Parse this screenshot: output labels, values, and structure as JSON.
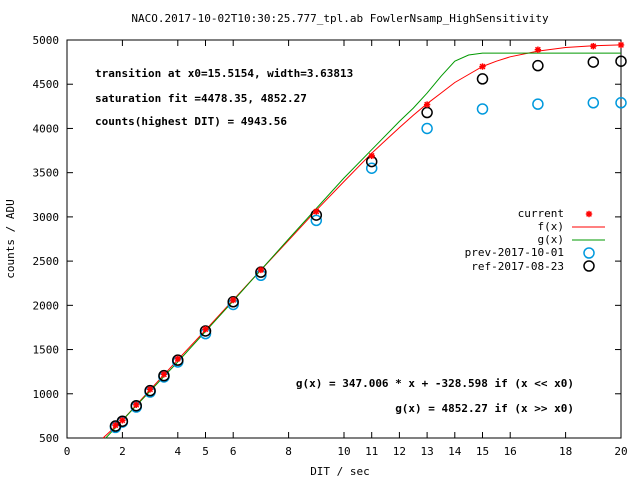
{
  "chart_data": {
    "type": "scatter",
    "title": "NACO.2017-10-02T10:30:25.777_tpl.ab FowlerNsamp_HighSensitivity",
    "xlabel": "DIT / sec",
    "ylabel": "counts / ADU",
    "xlim": [
      0,
      20
    ],
    "ylim": [
      500,
      5000
    ],
    "xticks": [
      0,
      2,
      4,
      6,
      8,
      10,
      12,
      14,
      16,
      18,
      20
    ],
    "xticks_extra": [
      5,
      11,
      13,
      15
    ],
    "yticks": [
      500,
      1000,
      1500,
      2000,
      2500,
      3000,
      3500,
      4000,
      4500,
      5000
    ],
    "grid": false,
    "legend_position": "right",
    "annotations": [
      "transition at x0=15.5154, width=3.63813",
      "saturation fit =4478.35, 4852.27",
      "counts(highest DIT) = 4943.56",
      "g(x) = 347.006 * x + -328.598 if (x << x0)",
      "g(x) = 4852.27 if (x >> x0)"
    ],
    "colors": {
      "current": "#ff0000",
      "f": "#ff0000",
      "g": "#009900",
      "prev": "#0099dd",
      "ref": "#000000"
    },
    "series": [
      {
        "name": "current",
        "marker": "star",
        "x": [
          1.75,
          2,
          2.5,
          3,
          3.5,
          4,
          5,
          6,
          7,
          9,
          11,
          13,
          15,
          17,
          19,
          20
        ],
        "y": [
          645,
          700,
          875,
          1050,
          1220,
          1395,
          1730,
          2060,
          2400,
          3060,
          3690,
          4270,
          4700,
          4890,
          4930,
          4944
        ]
      },
      {
        "name": "f(x)",
        "marker": "line",
        "x": [
          1.3,
          2,
          3,
          4,
          5,
          6,
          7,
          8,
          9,
          10,
          11,
          12,
          12.5,
          13,
          13.5,
          14,
          14.5,
          15,
          15.5,
          16,
          17,
          18,
          19,
          20
        ],
        "y": [
          500,
          700,
          1045,
          1385,
          1720,
          2060,
          2400,
          2735,
          3075,
          3400,
          3720,
          4010,
          4150,
          4280,
          4400,
          4520,
          4610,
          4700,
          4760,
          4810,
          4875,
          4915,
          4935,
          4945
        ]
      },
      {
        "name": "g(x)",
        "marker": "line",
        "x": [
          1.4,
          2,
          4,
          6,
          8,
          10,
          11,
          12,
          12.5,
          13,
          13.5,
          14,
          14.5,
          15,
          16,
          18,
          20
        ],
        "y": [
          500,
          700,
          1360,
          2050,
          2750,
          3440,
          3760,
          4080,
          4230,
          4400,
          4590,
          4760,
          4830,
          4852,
          4852,
          4852,
          4852
        ]
      },
      {
        "name": "prev-2017-10-01",
        "marker": "circle",
        "x": [
          1.75,
          2,
          2.5,
          3,
          3.5,
          4,
          5,
          6,
          7,
          9,
          11,
          13,
          15,
          17,
          19,
          20
        ],
        "y": [
          620,
          680,
          850,
          1020,
          1190,
          1360,
          1680,
          2010,
          2340,
          2960,
          3550,
          4000,
          4220,
          4275,
          4290,
          4290
        ]
      },
      {
        "name": "ref-2017-08-23",
        "marker": "circle",
        "x": [
          1.75,
          2,
          2.5,
          3,
          3.5,
          4,
          5,
          6,
          7,
          9,
          11,
          13,
          15,
          17,
          19,
          20
        ],
        "y": [
          635,
          690,
          865,
          1035,
          1205,
          1380,
          1710,
          2040,
          2375,
          3020,
          3625,
          4180,
          4560,
          4710,
          4750,
          4760
        ]
      }
    ]
  }
}
